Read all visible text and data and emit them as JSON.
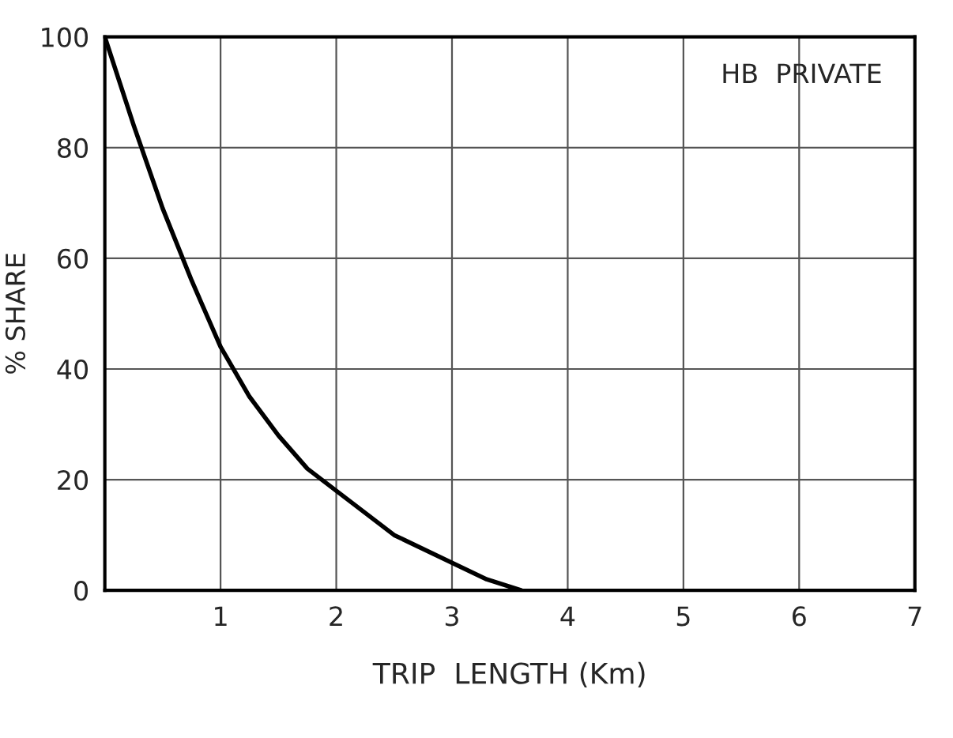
{
  "chart_data": {
    "type": "line",
    "xlabel": "TRIP  LENGTH (Km)",
    "ylabel": "% SHARE",
    "annotations": [
      "HB  PRIVATE"
    ],
    "x": [
      0,
      0.25,
      0.5,
      0.75,
      1,
      1.25,
      1.5,
      1.75,
      2,
      2.5,
      3,
      3.3,
      3.6
    ],
    "series": [
      {
        "color": "#000000",
        "values": [
          100,
          84,
          69,
          56,
          44,
          35,
          28,
          22,
          18,
          10,
          5,
          2,
          0
        ]
      }
    ],
    "xlim": [
      0,
      7
    ],
    "ylim": [
      0,
      100
    ],
    "xticks": [
      1,
      2,
      3,
      4,
      5,
      6,
      7
    ],
    "yticks": [
      0,
      20,
      40,
      60,
      80,
      100
    ],
    "grid": true,
    "legend": false,
    "marker": "none",
    "line_style": "solid"
  }
}
